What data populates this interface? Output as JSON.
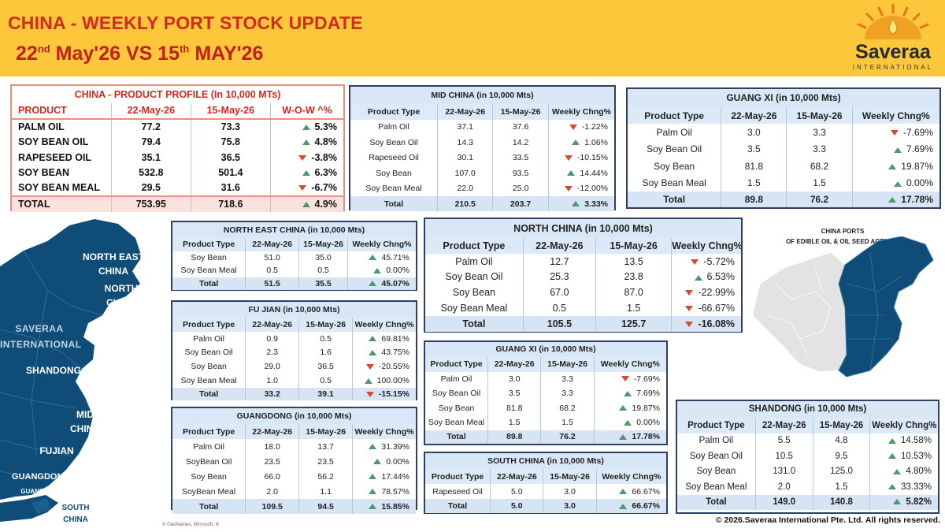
{
  "header": {
    "title": "CHINA - WEEKLY PORT STOCK UPDATE",
    "date_a": "22",
    "date_a_sup": "nd",
    "date_a_rest": " May'26 VS 15",
    "date_b_sup": "th",
    "date_b_rest": " MAY'26"
  },
  "logo": {
    "name": "Saveraa",
    "sub": "INTERNATIONAL"
  },
  "map_labels": {
    "ne": "NORTH EAST CHINA",
    "nc": "NORTH CHINA",
    "wm": "SAVERAA INTERNATIONAL",
    "sd": "SHANDONG",
    "mid": "MID CHINA",
    "fj": "FUJIAN",
    "gd": "GUANGDONG",
    "gx": "GUANG XI",
    "sc": "SOUTH CHINA",
    "attrib": "© GeoNames, Microsoft, N"
  },
  "map_right": {
    "caption_1": "CHINA PORTS",
    "caption_2": "OF EDIBLE OIL & OIL SEED ACTIVITY"
  },
  "copyright": "© 2026.Saveraa International Pte. Ltd. All rights reserved.",
  "tables": {
    "cp": {
      "title": "CHINA - PRODUCT PROFILE (In 10,000 MTs)",
      "headers": [
        "PRODUCT",
        "22-May-26",
        "15-May-26",
        "W-O-W ^%"
      ],
      "rows": [
        [
          "PALM OIL",
          "77.2",
          "73.3",
          "5.3%",
          "up"
        ],
        [
          "SOY BEAN OIL",
          "79.4",
          "75.8",
          "4.8%",
          "up"
        ],
        [
          "RAPESEED OIL",
          "35.1",
          "36.5",
          "-3.8%",
          "dn"
        ],
        [
          "SOY BEAN",
          "532.8",
          "501.4",
          "6.3%",
          "up"
        ],
        [
          "SOY BEAN MEAL",
          "29.5",
          "31.6",
          "-6.7%",
          "dn"
        ]
      ],
      "total": [
        "TOTAL",
        "753.95",
        "718.6",
        "4.9%",
        "up"
      ]
    },
    "mid": {
      "title": "MID CHINA (in 10,000 Mts)",
      "headers": [
        "Product Type",
        "22-May-26",
        "15-May-26",
        "Weekly Chng%"
      ],
      "rows": [
        [
          "Palm Oil",
          "37.1",
          "37.6",
          "-1.22%",
          "dn"
        ],
        [
          "Soy Bean Oil",
          "14.3",
          "14.2",
          "1.06%",
          "up"
        ],
        [
          "Rapeseed Oil",
          "30.1",
          "33.5",
          "-10.15%",
          "dn"
        ],
        [
          "Soy Bean",
          "107.0",
          "93.5",
          "14.44%",
          "up"
        ],
        [
          "Soy Bean Meal",
          "22.0",
          "25.0",
          "-12.00%",
          "dn"
        ]
      ],
      "total": [
        "Total",
        "210.5",
        "203.7",
        "3.33%",
        "up"
      ]
    },
    "gx1": {
      "title": "GUANG XI (in 10,000 Mts)",
      "headers": [
        "Product Type",
        "22-May-26",
        "15-May-26",
        "Weekly Chng%"
      ],
      "rows": [
        [
          "Palm Oil",
          "3.0",
          "3.3",
          "-7.69%",
          "dn"
        ],
        [
          "Soy Bean Oil",
          "3.5",
          "3.3",
          "7.69%",
          "up"
        ],
        [
          "Soy Bean",
          "81.8",
          "68.2",
          "19.87%",
          "up"
        ],
        [
          "Soy Bean Meal",
          "1.5",
          "1.5",
          "0.00%",
          "up"
        ]
      ],
      "total": [
        "Total",
        "89.8",
        "76.2",
        "17.78%",
        "up"
      ]
    },
    "ne": {
      "title": "NORTH EAST CHINA (in 10,000 Mts)",
      "headers": [
        "Product Type",
        "22-May-26",
        "15-May-26",
        "Weekly Chng%"
      ],
      "rows": [
        [
          "Soy Bean",
          "51.0",
          "35.0",
          "45.71%",
          "up"
        ],
        [
          "Soy Bean Meal",
          "0.5",
          "0.5",
          "0.00%",
          "up"
        ]
      ],
      "total": [
        "Total",
        "51.5",
        "35.5",
        "45.07%",
        "up"
      ]
    },
    "nc": {
      "title": "NORTH CHINA (in 10,000 Mts)",
      "headers": [
        "Product Type",
        "22-May-26",
        "15-May-26",
        "Weekly Chng%"
      ],
      "rows": [
        [
          "Palm Oil",
          "12.7",
          "13.5",
          "-5.72%",
          "dn"
        ],
        [
          "Soy Bean Oil",
          "25.3",
          "23.8",
          "6.53%",
          "up"
        ],
        [
          "Soy Bean",
          "67.0",
          "87.0",
          "-22.99%",
          "dn"
        ],
        [
          "Soy Bean Meal",
          "0.5",
          "1.5",
          "-66.67%",
          "dn"
        ]
      ],
      "total": [
        "Total",
        "105.5",
        "125.7",
        "-16.08%",
        "dn"
      ]
    },
    "fj": {
      "title": "FU JIAN (in 10,000 Mts)",
      "headers": [
        "Product Type",
        "22-May-26",
        "15-May-26",
        "Weekly Chng%"
      ],
      "rows": [
        [
          "Palm Oil",
          "0.9",
          "0.5",
          "69.81%",
          "up"
        ],
        [
          "Soy Bean Oil",
          "2.3",
          "1.6",
          "43.75%",
          "up"
        ],
        [
          "Soy Bean",
          "29.0",
          "36.5",
          "-20.55%",
          "dn"
        ],
        [
          "Soy Bean Meal",
          "1.0",
          "0.5",
          "100.00%",
          "up"
        ]
      ],
      "total": [
        "Total",
        "33.2",
        "39.1",
        "-15.15%",
        "dn"
      ]
    },
    "gx2": {
      "title": "GUANG XI (in 10,000 Mts)",
      "headers": [
        "Product Type",
        "22-May-26",
        "15-May-26",
        "Weekly Chng%"
      ],
      "rows": [
        [
          "Palm Oil",
          "3.0",
          "3.3",
          "-7.69%",
          "dn"
        ],
        [
          "Soy Bean Oil",
          "3.5",
          "3.3",
          "7.69%",
          "up"
        ],
        [
          "Soy Bean",
          "81.8",
          "68.2",
          "19.87%",
          "up"
        ],
        [
          "Soy Bean Meal",
          "1.5",
          "1.5",
          "0.00%",
          "up"
        ]
      ],
      "total": [
        "Total",
        "89.8",
        "76.2",
        "17.78%",
        "up"
      ]
    },
    "gd": {
      "title": "GUANGDONG (in 10,000 Mts)",
      "headers": [
        "Product Type",
        "22-May-26",
        "15-May-26",
        "Weekly Chng%"
      ],
      "rows": [
        [
          "Palm Oil",
          "18.0",
          "13.7",
          "31.39%",
          "up"
        ],
        [
          "SoyBean Oil",
          "23.5",
          "23.5",
          "0.00%",
          "up"
        ],
        [
          "Soy Bean",
          "66.0",
          "56.2",
          "17.44%",
          "up"
        ],
        [
          "SoyBean Meal",
          "2.0",
          "1.1",
          "78.57%",
          "up"
        ]
      ],
      "total": [
        "Total",
        "109.5",
        "94.5",
        "15.85%",
        "up"
      ]
    },
    "sc": {
      "title": "SOUTH CHINA (in 10,000 Mts)",
      "headers": [
        "Product Type",
        "22-May-26",
        "15-May-26",
        "Weekly Chng%"
      ],
      "rows": [
        [
          "Rapeseed Oil",
          "5.0",
          "3.0",
          "66.67%",
          "up"
        ]
      ],
      "total": [
        "Total",
        "5.0",
        "3.0",
        "66.67%",
        "up"
      ]
    },
    "sd": {
      "title": "SHANDONG (in 10,000 Mts)",
      "headers": [
        "Product Type",
        "22-May-26",
        "15-May-26",
        "Weekly Chng%"
      ],
      "rows": [
        [
          "Palm Oil",
          "5.5",
          "4.8",
          "14.58%",
          "up"
        ],
        [
          "Soy Bean Oil",
          "10.5",
          "9.5",
          "10.53%",
          "up"
        ],
        [
          "Soy Bean",
          "131.0",
          "125.0",
          "4.80%",
          "up"
        ],
        [
          "Soy Bean Meal",
          "2.0",
          "1.5",
          "33.33%",
          "up"
        ]
      ],
      "total": [
        "Total",
        "149.0",
        "140.8",
        "5.82%",
        "up"
      ]
    }
  }
}
